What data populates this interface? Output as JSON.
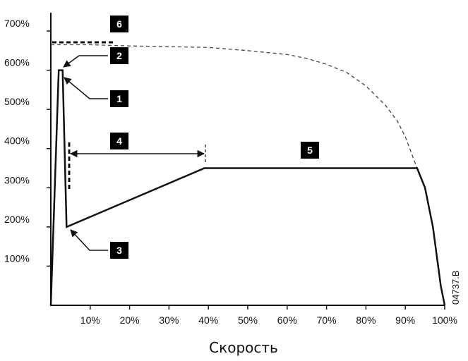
{
  "chart_data": {
    "type": "line",
    "xlabel": "Скорость",
    "x_ticks": [
      "10%",
      "20%",
      "30%",
      "40%",
      "50%",
      "60%",
      "70%",
      "80%",
      "90%",
      "100%"
    ],
    "y_ticks": [
      "100%",
      "200%",
      "300%",
      "400%",
      "500%",
      "600%",
      "700%"
    ],
    "xlim": [
      0,
      100
    ],
    "ylim": [
      0,
      700
    ],
    "grid": false,
    "series": [
      {
        "style": "solid",
        "points": [
          [
            0,
            0
          ],
          [
            2,
            600
          ],
          [
            3,
            600
          ],
          [
            4,
            200
          ],
          [
            39,
            350
          ],
          [
            93,
            350
          ],
          [
            95,
            300
          ],
          [
            97,
            200
          ],
          [
            99,
            50
          ],
          [
            100,
            0
          ]
        ]
      },
      {
        "style": "dashed",
        "points": [
          [
            0,
            665
          ],
          [
            10,
            665
          ],
          [
            20,
            662
          ],
          [
            30,
            660
          ],
          [
            40,
            658
          ],
          [
            50,
            650
          ],
          [
            60,
            640
          ],
          [
            65,
            630
          ],
          [
            70,
            615
          ],
          [
            75,
            595
          ],
          [
            80,
            560
          ],
          [
            85,
            510
          ],
          [
            88,
            470
          ],
          [
            90,
            430
          ],
          [
            93,
            350
          ]
        ]
      }
    ],
    "annotations": [
      "1",
      "2",
      "3",
      "4",
      "5",
      "6"
    ],
    "code": "04737.B"
  }
}
